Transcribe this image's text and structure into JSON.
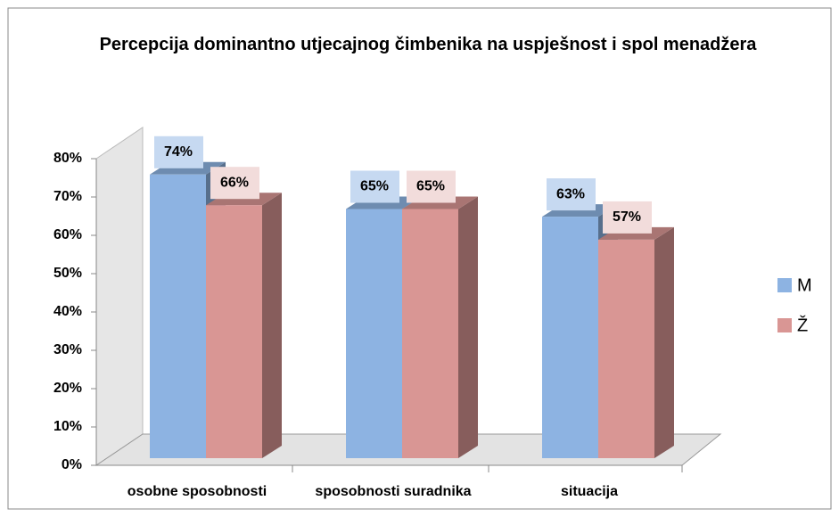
{
  "chart_data": {
    "type": "bar3d",
    "title": "Percepcija dominantno utjecajnog čimbenika na uspješnost i spol menadžera",
    "categories": [
      "osobne sposobnosti",
      "sposobnosti suradnika",
      "situacija"
    ],
    "series": [
      {
        "name": "M",
        "color": "#8db3e2",
        "values": [
          74,
          65,
          63
        ],
        "value_labels": [
          "74%",
          "65%",
          "63%"
        ]
      },
      {
        "name": "Ž",
        "color": "#d99694",
        "values": [
          66,
          65,
          57
        ],
        "value_labels": [
          "66%",
          "65%",
          "57%"
        ]
      }
    ],
    "ylim": [
      0,
      80
    ],
    "yticks": [
      {
        "value": 0,
        "label": "0%"
      },
      {
        "value": 10,
        "label": "10%"
      },
      {
        "value": 20,
        "label": "20%"
      },
      {
        "value": 30,
        "label": "30%"
      },
      {
        "value": 40,
        "label": "40%"
      },
      {
        "value": 50,
        "label": "50%"
      },
      {
        "value": 60,
        "label": "60%"
      },
      {
        "value": 70,
        "label": "70%"
      },
      {
        "value": 80,
        "label": "80%"
      }
    ],
    "legend": "right"
  }
}
